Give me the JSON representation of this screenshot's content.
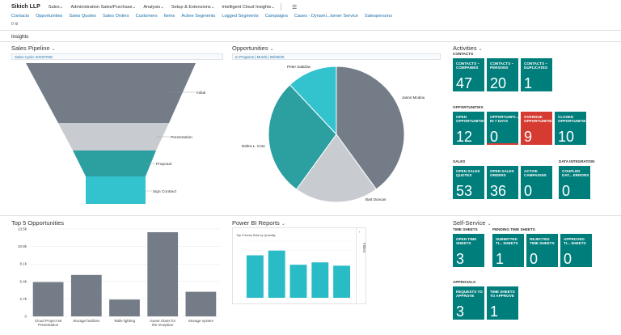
{
  "topbar": {
    "brand": "Sikich LLP",
    "menus": [
      "Sales",
      "Administration Sales/Purchase",
      "Analysis",
      "Setup & Extensions",
      "Intelligent Cloud Insights"
    ],
    "menu_icon": "hamburger-icon"
  },
  "navbar": {
    "items": [
      "Contacts",
      "Opportunities",
      "Sales Quotes",
      "Sales Orders",
      "Customers",
      "Items",
      "Active Segments",
      "Logged Segments",
      "Campaigns",
      "Cases - Dynami...tomer Service",
      "Salespersons"
    ]
  },
  "subnum": "0 ⚙",
  "section_title": "Insights",
  "sales_pipeline": {
    "title": "Sales Pipeline",
    "filter": "Sales Cycle: EXISTING",
    "stages": [
      {
        "label": "Initial",
        "color": "#737c87"
      },
      {
        "label": "Presentation",
        "color": "#c8cbd0"
      },
      {
        "label": "Proposal",
        "color": "#2c9fa1"
      },
      {
        "label": "Sign Contract",
        "color": "#33c3ce"
      }
    ]
  },
  "opportunities": {
    "title": "Opportunities",
    "filter": "In Progress | Month | 06/30/20",
    "chart_data": {
      "type": "pie",
      "labels": [
        "Jason Mcalou",
        "Bart Duncan",
        "Debra L. Core",
        "Peter Saddow"
      ],
      "values": [
        40,
        20,
        28,
        12
      ],
      "colors": [
        "#737c87",
        "#c8cbd0",
        "#2c9fa1",
        "#33c3ce"
      ]
    }
  },
  "activities": {
    "title": "Activities",
    "contacts_head": "CONTACTS",
    "contacts": [
      {
        "label": "CONTACTS – COMPANIES",
        "value": "47"
      },
      {
        "label": "CONTACTS – PERSONS",
        "value": "20"
      },
      {
        "label": "CONTACTS – DUPLICATES",
        "value": "1"
      }
    ],
    "opp_head": "OPPORTUNITIES",
    "opps": [
      {
        "label": "OPEN OPPORTUNITIES",
        "value": "12",
        "state": "normal"
      },
      {
        "label": "OPPORTUNITI... IN 7 DAYS",
        "value": "0",
        "state": "warn"
      },
      {
        "label": "OVERDUE OPPORTUNITIES",
        "value": "9",
        "state": "red"
      },
      {
        "label": "CLOSED OPPORTUNITIES",
        "value": "10",
        "state": "normal"
      }
    ],
    "sales_head": "SALES",
    "sales": [
      {
        "label": "OPEN SALES QUOTES",
        "value": "53"
      },
      {
        "label": "OPEN SALES ORDERS",
        "value": "36"
      },
      {
        "label": "ACTIVE CAMPAIGNS",
        "value": "0"
      }
    ],
    "di_head": "DATA INTEGRATION",
    "di": [
      {
        "label": "COUPLED DAT... ERRORS",
        "value": "0"
      }
    ]
  },
  "top5": {
    "title": "Top 5 Opportunities",
    "chart_data": {
      "type": "bar",
      "categories": [
        "Cloud Project 50 Presentation",
        "Storage facilities",
        "Table lighting",
        "Guest chairs for the reception",
        "Storage system"
      ],
      "values": [
        5300,
        6400,
        2600,
        13000,
        3800
      ],
      "ylim": [
        0,
        13500
      ],
      "yticks": [
        0,
        2700,
        5400,
        8100,
        10800,
        13500
      ],
      "ytick_labels": [
        "0",
        "2.7k",
        "5.4k",
        "8.1k",
        "10.8k",
        "13.5k"
      ],
      "color": "#737c87"
    }
  },
  "powerbi": {
    "title": "Power BI Reports",
    "filters_label": "Filters",
    "chart_data": {
      "type": "bar",
      "title": "Top 5 Items Sold by Quantity",
      "values": [
        9,
        10,
        7,
        7.5,
        6.8
      ],
      "ylim": [
        0,
        12
      ],
      "color": "#2abcc6"
    }
  },
  "selfservice": {
    "title": "Self-Service",
    "ts_head": "TIME SHEETS",
    "pts_head": "PENDING TIME SHEETS",
    "timesheets": [
      {
        "label": "OPEN TIME SHEETS",
        "value": "3"
      },
      {
        "label": "SUBMITTED TI... SHEETS",
        "value": "1"
      },
      {
        "label": "REJECTED TIME SHEETS",
        "value": "0"
      },
      {
        "label": "APPROVED TI... SHEETS",
        "value": "0"
      }
    ],
    "appr_head": "APPROVALS",
    "approvals": [
      {
        "label": "REQUESTS TO APPROVE",
        "value": "3"
      },
      {
        "label": "TIME SHEETS TO APPROVE",
        "value": "1"
      }
    ]
  }
}
